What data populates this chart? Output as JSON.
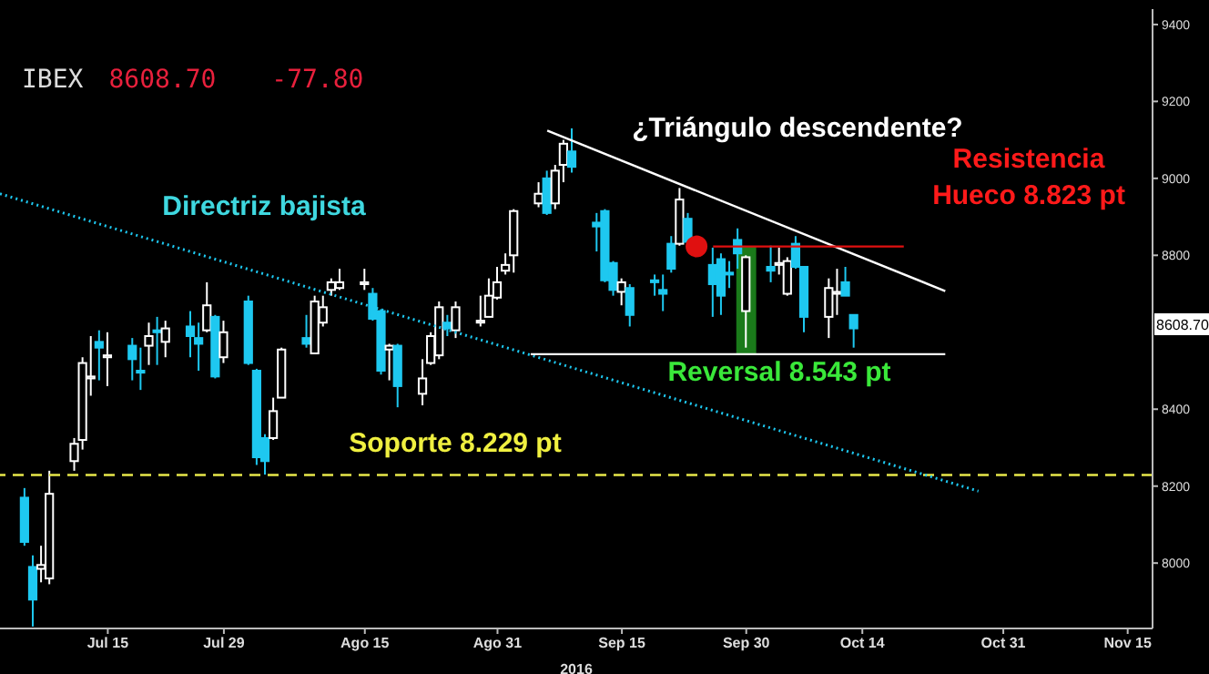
{
  "chart_data": {
    "type": "candlestick",
    "title": "IBEX",
    "subtitle": "8608.70 -77.80",
    "xlabel": "2016",
    "x": [
      "2016-07-05",
      "2016-07-06",
      "2016-07-07",
      "2016-07-08",
      "2016-07-11",
      "2016-07-12",
      "2016-07-13",
      "2016-07-14",
      "2016-07-15",
      "2016-07-18",
      "2016-07-19",
      "2016-07-20",
      "2016-07-21",
      "2016-07-22",
      "2016-07-25",
      "2016-07-26",
      "2016-07-27",
      "2016-07-28",
      "2016-07-29",
      "2016-08-01",
      "2016-08-02",
      "2016-08-03",
      "2016-08-04",
      "2016-08-05",
      "2016-08-08",
      "2016-08-09",
      "2016-08-10",
      "2016-08-11",
      "2016-08-12",
      "2016-08-15",
      "2016-08-16",
      "2016-08-17",
      "2016-08-18",
      "2016-08-19",
      "2016-08-22",
      "2016-08-23",
      "2016-08-24",
      "2016-08-25",
      "2016-08-26",
      "2016-08-29",
      "2016-08-30",
      "2016-08-31",
      "2016-09-01",
      "2016-09-02",
      "2016-09-05",
      "2016-09-06",
      "2016-09-07",
      "2016-09-08",
      "2016-09-09",
      "2016-09-12",
      "2016-09-13",
      "2016-09-14",
      "2016-09-15",
      "2016-09-16",
      "2016-09-19",
      "2016-09-20",
      "2016-09-21",
      "2016-09-22",
      "2016-09-23",
      "2016-09-26",
      "2016-09-27",
      "2016-09-28",
      "2016-09-29",
      "2016-09-30",
      "2016-10-03",
      "2016-10-04",
      "2016-10-05",
      "2016-10-06",
      "2016-10-07",
      "2016-10-10",
      "2016-10-11",
      "2016-10-12",
      "2016-10-13"
    ],
    "ohlc": [
      [
        8170,
        8195,
        8045,
        8055
      ],
      [
        7990,
        8020,
        7835,
        7905
      ],
      [
        7985,
        8045,
        7950,
        7995
      ],
      [
        7960,
        8240,
        7945,
        8180
      ],
      [
        8265,
        8325,
        8240,
        8310
      ],
      [
        8320,
        8535,
        8295,
        8520
      ],
      [
        8480,
        8590,
        8435,
        8485
      ],
      [
        8575,
        8605,
        8475,
        8560
      ],
      [
        8535,
        8600,
        8460,
        8540
      ],
      [
        8565,
        8585,
        8475,
        8530
      ],
      [
        8500,
        8560,
        8450,
        8495
      ],
      [
        8565,
        8625,
        8515,
        8590
      ],
      [
        8605,
        8640,
        8515,
        8600
      ],
      [
        8575,
        8630,
        8535,
        8610
      ],
      [
        8615,
        8655,
        8535,
        8590
      ],
      [
        8585,
        8625,
        8500,
        8570
      ],
      [
        8605,
        8730,
        8600,
        8670
      ],
      [
        8640,
        8645,
        8480,
        8485
      ],
      [
        8535,
        8630,
        8520,
        8600
      ],
      [
        8680,
        8695,
        8515,
        8520
      ],
      [
        8500,
        8505,
        8255,
        8275
      ],
      [
        8325,
        8335,
        8230,
        8265
      ],
      [
        8325,
        8430,
        8320,
        8395
      ],
      [
        8430,
        8560,
        8430,
        8555
      ],
      [
        8585,
        8645,
        8560,
        8570
      ],
      [
        8545,
        8695,
        8545,
        8680
      ],
      [
        8625,
        8695,
        8615,
        8665
      ],
      [
        8710,
        8740,
        8695,
        8730
      ],
      [
        8715,
        8765,
        8710,
        8730
      ],
      [
        8725,
        8765,
        8710,
        8730
      ],
      [
        8700,
        8715,
        8630,
        8635
      ],
      [
        8655,
        8660,
        8490,
        8500
      ],
      [
        8555,
        8570,
        8475,
        8565
      ],
      [
        8565,
        8570,
        8405,
        8460
      ],
      [
        8440,
        8530,
        8410,
        8480
      ],
      [
        8520,
        8600,
        8515,
        8590
      ],
      [
        8540,
        8680,
        8530,
        8665
      ],
      [
        8625,
        8645,
        8590,
        8610
      ],
      [
        8605,
        8680,
        8585,
        8665
      ],
      [
        8625,
        8695,
        8615,
        8630
      ],
      [
        8640,
        8740,
        8640,
        8695
      ],
      [
        8690,
        8770,
        8685,
        8730
      ],
      [
        8760,
        8805,
        8750,
        8775
      ],
      [
        8800,
        8920,
        8755,
        8915
      ],
      [
        8935,
        8990,
        8925,
        8960
      ],
      [
        9000,
        9020,
        8905,
        8910
      ],
      [
        8935,
        9035,
        8920,
        9020
      ],
      [
        9035,
        9100,
        8990,
        9090
      ],
      [
        9070,
        9130,
        9015,
        9030
      ],
      [
        8885,
        8910,
        8810,
        8875
      ],
      [
        8915,
        8920,
        8730,
        8735
      ],
      [
        8780,
        8785,
        8695,
        8710
      ],
      [
        8705,
        8740,
        8670,
        8730
      ],
      [
        8715,
        8725,
        8615,
        8645
      ],
      [
        8735,
        8750,
        8695,
        8730
      ],
      [
        8710,
        8750,
        8655,
        8700
      ],
      [
        8830,
        8850,
        8755,
        8765
      ],
      [
        8830,
        8975,
        8825,
        8945
      ],
      [
        8895,
        8910,
        8835,
        8835
      ],
      [
        8775,
        8820,
        8640,
        8725
      ],
      [
        8790,
        8805,
        8645,
        8695
      ],
      [
        8755,
        8785,
        8715,
        8750
      ],
      [
        8840,
        8870,
        8765,
        8805
      ],
      [
        8655,
        8800,
        8560,
        8795
      ],
      [
        8770,
        8825,
        8730,
        8760
      ],
      [
        8775,
        8820,
        8750,
        8780
      ],
      [
        8700,
        8795,
        8695,
        8785
      ],
      [
        8830,
        8850,
        8765,
        8770
      ],
      [
        8770,
        8770,
        8600,
        8640
      ],
      [
        8640,
        8740,
        8585,
        8715
      ],
      [
        8700,
        8765,
        8645,
        8705
      ],
      [
        8730,
        8770,
        8695,
        8695
      ],
      [
        8645,
        8645,
        8560,
        8610
      ]
    ],
    "colors": [
      "#1ec8f0",
      "#1ec8f0",
      "#ffffff",
      "#ffffff",
      "#ffffff",
      "#ffffff",
      "#ffffff",
      "#1ec8f0",
      "#ffffff",
      "#1ec8f0",
      "#1ec8f0",
      "#ffffff",
      "#1ec8f0",
      "#ffffff",
      "#1ec8f0",
      "#1ec8f0",
      "#ffffff",
      "#1ec8f0",
      "#ffffff",
      "#1ec8f0",
      "#1ec8f0",
      "#1ec8f0",
      "#ffffff",
      "#ffffff",
      "#1ec8f0",
      "#ffffff",
      "#ffffff",
      "#ffffff",
      "#ffffff",
      "#ffffff",
      "#1ec8f0",
      "#1ec8f0",
      "#ffffff",
      "#1ec8f0",
      "#ffffff",
      "#ffffff",
      "#ffffff",
      "#1ec8f0",
      "#ffffff",
      "#ffffff",
      "#ffffff",
      "#ffffff",
      "#ffffff",
      "#ffffff",
      "#ffffff",
      "#1ec8f0",
      "#ffffff",
      "#ffffff",
      "#1ec8f0",
      "#1ec8f0",
      "#1ec8f0",
      "#1ec8f0",
      "#ffffff",
      "#1ec8f0",
      "#1ec8f0",
      "#1ec8f0",
      "#1ec8f0",
      "#ffffff",
      "#1ec8f0",
      "#1ec8f0",
      "#1ec8f0",
      "#1ec8f0",
      "#1ec8f0",
      "#ffffff",
      "#1ec8f0",
      "#ffffff",
      "#ffffff",
      "#1ec8f0",
      "#1ec8f0",
      "#ffffff",
      "#ffffff",
      "#1ec8f0",
      "#1ec8f0"
    ],
    "series": [
      {
        "type": "line",
        "x": [
          "2016-07-02",
          "2016-10-28"
        ],
        "values": [
          8960,
          8187
        ],
        "color": "#1ec8f0",
        "line_style": "dotted"
      },
      {
        "type": "line",
        "x": [
          "2016-09-06",
          "2016-10-24"
        ],
        "values": [
          9124,
          8707
        ],
        "color": "#ffffff",
        "line_style": "solid"
      },
      {
        "type": "line",
        "x": [
          "2016-09-04",
          "2016-10-24"
        ],
        "values": [
          8543,
          8543
        ],
        "color": "#ffffff",
        "line_style": "solid"
      },
      {
        "type": "line",
        "x": [
          "2016-09-26",
          "2016-10-19"
        ],
        "values": [
          8823,
          8823
        ],
        "color": "#e01010",
        "line_style": "solid"
      },
      {
        "type": "scatter",
        "x": [
          "2016-09-24"
        ],
        "values": [
          8823
        ],
        "color": "#e01010",
        "marker": "circle"
      },
      {
        "type": "bar",
        "x": [
          "2016-09-30"
        ],
        "values": [
          280
        ],
        "base": [
          8543
        ],
        "color": "#1f8f1f"
      }
    ],
    "ref_lines": [
      {
        "axis": "y",
        "value": 8229,
        "color": "#e8e84a",
        "line_style": "dashed"
      }
    ],
    "annotations": [
      "Directriz bajista",
      "¿Triángulo descendente?",
      "Resistencia\nHueco 8.823 pt",
      "Reversal 8.543 pt",
      "Soporte 8.229 pt",
      "8608.70"
    ],
    "xlim": [
      "2016-07-02",
      "2016-11-18"
    ],
    "xticks": [
      {
        "value": "2016-07-15",
        "label": "Jul 15"
      },
      {
        "value": "2016-07-29",
        "label": "Jul 29"
      },
      {
        "value": "2016-08-15",
        "label": "Ago 15"
      },
      {
        "value": "2016-08-31",
        "label": "Ago 31"
      },
      {
        "value": "2016-09-15",
        "label": "Sep 15"
      },
      {
        "value": "2016-09-30",
        "label": "Sep 30"
      },
      {
        "value": "2016-10-14",
        "label": "Oct 14"
      },
      {
        "value": "2016-10-31",
        "label": "Oct 31"
      },
      {
        "value": "2016-11-15",
        "label": "Nov 15"
      }
    ],
    "ylim": [
      7830,
      9440
    ],
    "yticks": [
      8000,
      8200,
      8400,
      8800,
      9000,
      9200,
      9400
    ]
  }
}
